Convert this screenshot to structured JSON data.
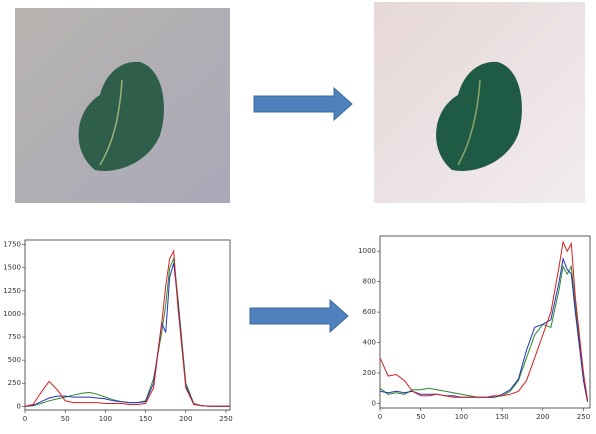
{
  "chart_data": [
    {
      "type": "line",
      "x": [
        0,
        10,
        20,
        30,
        40,
        50,
        60,
        70,
        80,
        90,
        100,
        110,
        120,
        130,
        140,
        150,
        160,
        170,
        175,
        180,
        185,
        190,
        200,
        210,
        220,
        230,
        240,
        250,
        255
      ],
      "series": [
        {
          "color": "#2b8a2b",
          "values": [
            0,
            5,
            30,
            60,
            80,
            100,
            120,
            140,
            150,
            130,
            100,
            70,
            50,
            40,
            40,
            60,
            300,
            800,
            1100,
            1500,
            1600,
            1200,
            250,
            30,
            5,
            0,
            0,
            0,
            0
          ]
        },
        {
          "color": "#2233bb",
          "values": [
            0,
            10,
            50,
            90,
            110,
            110,
            100,
            100,
            100,
            90,
            80,
            60,
            50,
            40,
            40,
            50,
            250,
            900,
            800,
            1400,
            1550,
            1150,
            220,
            25,
            5,
            0,
            0,
            0,
            0
          ]
        },
        {
          "color": "#d42020",
          "values": [
            0,
            20,
            150,
            270,
            180,
            60,
            40,
            40,
            40,
            40,
            30,
            30,
            30,
            20,
            20,
            30,
            200,
            900,
            1300,
            1600,
            1680,
            1100,
            200,
            20,
            5,
            0,
            0,
            0,
            0
          ]
        }
      ],
      "xlim": [
        0,
        255
      ],
      "xticks": [
        0,
        50,
        100,
        150,
        200,
        250
      ],
      "ylim": [
        -40,
        1800
      ],
      "yticks": [
        0,
        250,
        500,
        750,
        1000,
        1250,
        1500,
        1750
      ]
    },
    {
      "type": "line",
      "x": [
        0,
        10,
        20,
        30,
        40,
        50,
        60,
        70,
        80,
        90,
        100,
        110,
        120,
        130,
        140,
        150,
        160,
        170,
        180,
        190,
        200,
        210,
        220,
        225,
        230,
        235,
        240,
        250,
        255
      ],
      "series": [
        {
          "color": "#2b8a2b",
          "values": [
            100,
            60,
            70,
            60,
            90,
            90,
            100,
            90,
            80,
            70,
            60,
            50,
            40,
            40,
            40,
            50,
            80,
            150,
            300,
            450,
            520,
            500,
            750,
            900,
            850,
            900,
            650,
            150,
            10
          ]
        },
        {
          "color": "#2233bb",
          "values": [
            80,
            70,
            80,
            70,
            80,
            60,
            60,
            60,
            50,
            50,
            40,
            40,
            40,
            40,
            40,
            60,
            90,
            160,
            350,
            500,
            520,
            550,
            800,
            950,
            880,
            850,
            600,
            150,
            10
          ]
        },
        {
          "color": "#d42020",
          "values": [
            300,
            180,
            190,
            150,
            80,
            50,
            50,
            60,
            50,
            40,
            40,
            40,
            40,
            40,
            50,
            50,
            60,
            80,
            150,
            300,
            450,
            600,
            900,
            1060,
            1000,
            1050,
            700,
            200,
            20
          ]
        }
      ],
      "xlim": [
        0,
        258
      ],
      "xticks": [
        0,
        50,
        100,
        150,
        200,
        250
      ],
      "ylim": [
        -30,
        1100
      ],
      "yticks": [
        0,
        200,
        400,
        600,
        800,
        1000
      ]
    }
  ]
}
